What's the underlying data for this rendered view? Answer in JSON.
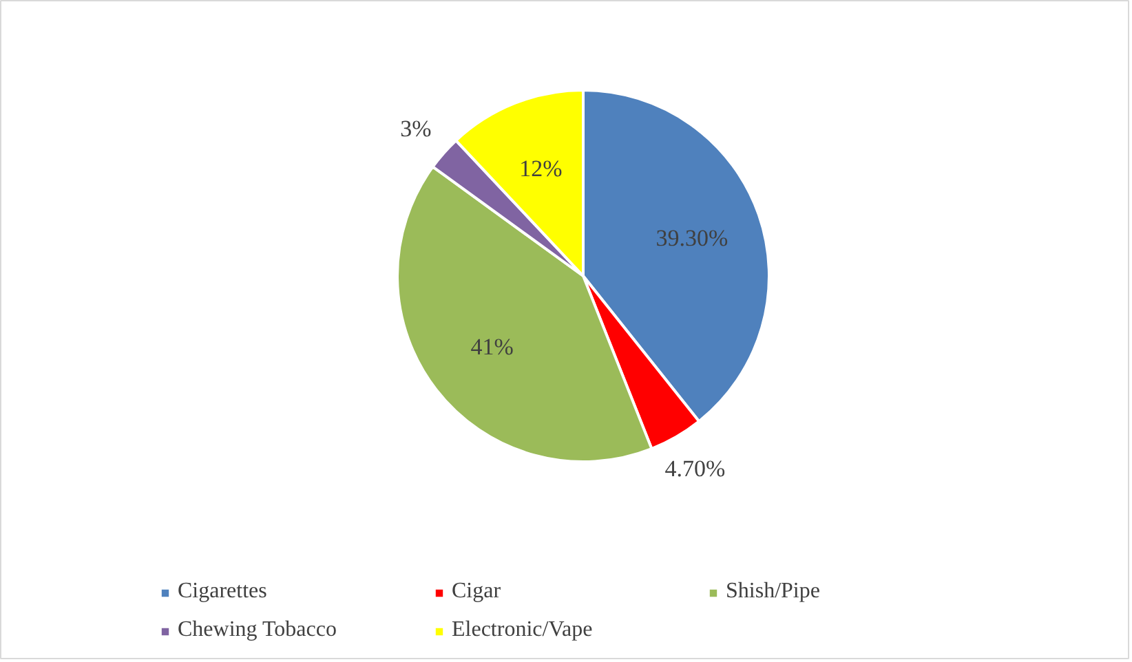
{
  "chart_data": {
    "type": "pie",
    "categories": [
      "Cigarettes",
      "Cigar",
      "Shish/Pipe",
      "Chewing Tobacco",
      "Electronic/Vape"
    ],
    "values": [
      39.3,
      4.7,
      41,
      3,
      12
    ],
    "colors": [
      "#4f81bd",
      "#ff0000",
      "#9bbb59",
      "#8064a2",
      "#ffff00"
    ],
    "value_labels": [
      "39.30%",
      "4.70%",
      "41%",
      "3%",
      "12%"
    ],
    "legend": "bottom"
  }
}
